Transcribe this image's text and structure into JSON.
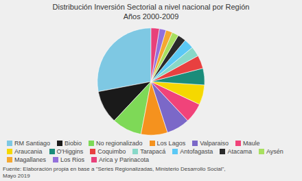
{
  "chart_data": {
    "type": "pie",
    "title": "Distribución Inversión Sectorial a nivel nacional por Región\nAños 2000-2009",
    "annotations": [
      "Fuente: Elaboración propia en base a \"Series Regionalizadas, Ministerio Desarrollo Social\",\nMayo 2019"
    ],
    "categories": [
      "RM Santiago",
      "Biobio",
      "No regionalizado",
      "Los Lagos",
      "Valparaiso",
      "Maule",
      "Araucania",
      "O'Higgins",
      "Coquimbo",
      "Tarapacá",
      "Antofagasta",
      "Atacama",
      "Aysén",
      "Magallanes",
      "Los Rios",
      "Arica y Parinacota"
    ],
    "values": [
      28,
      10,
      9,
      8,
      7,
      6,
      6,
      5,
      4,
      3,
      3,
      2.5,
      2,
      2,
      2,
      2.5
    ],
    "colors": [
      "#7ec8e3",
      "#1a1a1a",
      "#7ed957",
      "#f5921e",
      "#7b68c8",
      "#f0437a",
      "#f5d800",
      "#1a8c7a",
      "#e84040",
      "#88d8c8",
      "#5bc8f5",
      "#2a2a2a",
      "#a8e060",
      "#f5a830",
      "#9370db",
      "#e8407a"
    ],
    "legend": "lower left"
  }
}
